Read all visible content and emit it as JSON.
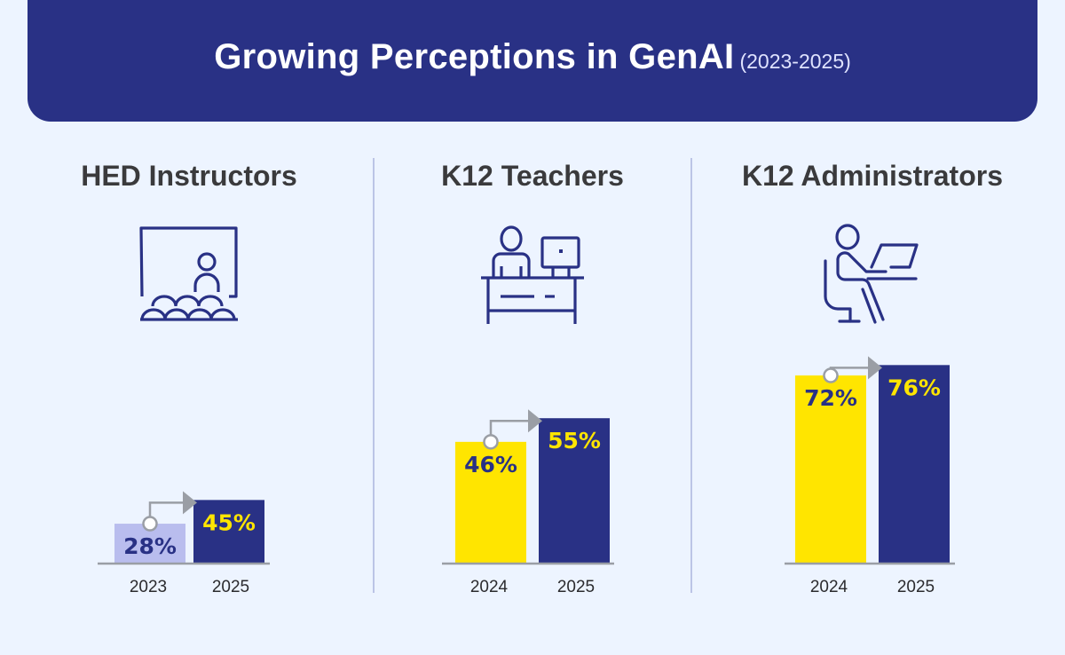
{
  "header": {
    "title": "Growing Perceptions in GenAI",
    "subtitle": "(2023-2025)"
  },
  "colors": {
    "navy": "#293185",
    "yellow": "#ffe500",
    "lavender": "#b9bdee",
    "axis": "#9a9ea5",
    "arrow": "#9a9ea5",
    "background": "#edf4ff"
  },
  "panels": [
    {
      "title": "HED Instructors",
      "icon": "classroom-presenter-icon"
    },
    {
      "title": "K12 Teachers",
      "icon": "teacher-desk-computer-icon"
    },
    {
      "title": "K12 Administrators",
      "icon": "person-laptop-desk-icon"
    }
  ],
  "chart_data": [
    {
      "type": "bar",
      "title": "HED Instructors",
      "categories": [
        "2023",
        "2025"
      ],
      "values": [
        28,
        45
      ],
      "labels": [
        "28%",
        "45%"
      ],
      "bar_colors": [
        "#b9bdee",
        "#293185"
      ],
      "label_colors": [
        "#293185",
        "#ffe500"
      ],
      "unit": "%",
      "annotation": "arrow from 2023 to 2025"
    },
    {
      "type": "bar",
      "title": "K12 Teachers",
      "categories": [
        "2024",
        "2025"
      ],
      "values": [
        46,
        55
      ],
      "labels": [
        "46%",
        "55%"
      ],
      "bar_colors": [
        "#ffe500",
        "#293185"
      ],
      "label_colors": [
        "#293185",
        "#ffe500"
      ],
      "unit": "%",
      "annotation": "arrow from 2024 to 2025"
    },
    {
      "type": "bar",
      "title": "K12 Administrators",
      "categories": [
        "2024",
        "2025"
      ],
      "values": [
        72,
        76
      ],
      "labels": [
        "72%",
        "76%"
      ],
      "bar_colors": [
        "#ffe500",
        "#293185"
      ],
      "label_colors": [
        "#293185",
        "#ffe500"
      ],
      "unit": "%",
      "annotation": "arrow from 2024 to 2025"
    }
  ]
}
